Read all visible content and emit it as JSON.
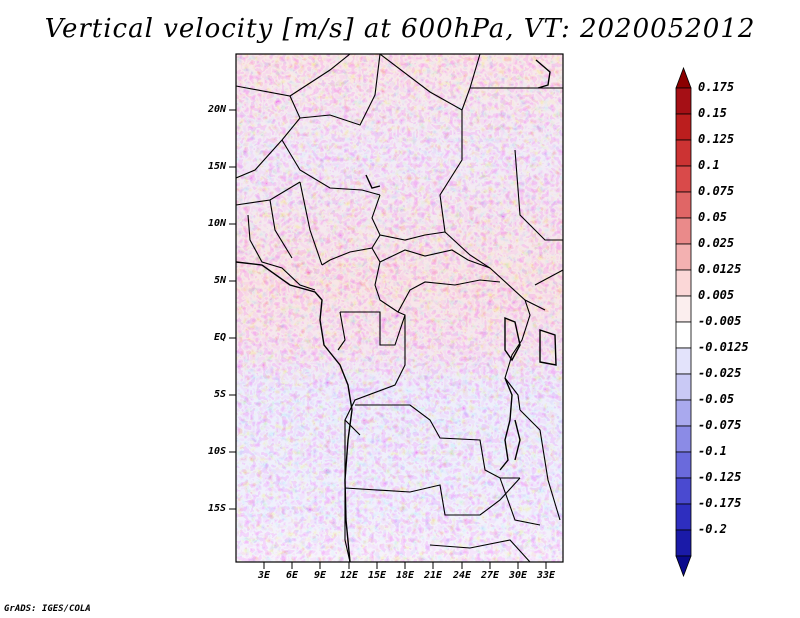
{
  "title": "Vertical velocity [m/s] at 600hPa, VT: 2020052012",
  "credit": "GrADS: IGES/COLA",
  "map": {
    "variable": "Vertical velocity",
    "units": "m/s",
    "level": "600hPa",
    "valid_time": "2020052012",
    "lat_labels": [
      "20N",
      "15N",
      "10N",
      "5N",
      "EQ",
      "5S",
      "10S",
      "15S"
    ],
    "lon_labels": [
      "3E",
      "6E",
      "9E",
      "12E",
      "15E",
      "18E",
      "21E",
      "24E",
      "27E",
      "30E",
      "33E"
    ]
  },
  "colorbar": {
    "labels": [
      "0.175",
      "0.15",
      "0.125",
      "0.1",
      "0.075",
      "0.05",
      "0.025",
      "0.0125",
      "0.005",
      "-0.005",
      "-0.0125",
      "-0.025",
      "-0.05",
      "-0.075",
      "-0.1",
      "-0.125",
      "-0.175",
      "-0.2"
    ],
    "colors": [
      "#8b0000",
      "#a50f15",
      "#bb1e1e",
      "#cc3333",
      "#d94a4a",
      "#e06666",
      "#ea8a8a",
      "#f3b1b1",
      "#fbd7d7",
      "#fbeeee",
      "#ffffff",
      "#e3e3fb",
      "#c9c9f5",
      "#a9a9ee",
      "#8b8be6",
      "#6a6adc",
      "#4a4ad0",
      "#2e2ebf",
      "#1a1aa8",
      "#0a0a8c"
    ]
  }
}
